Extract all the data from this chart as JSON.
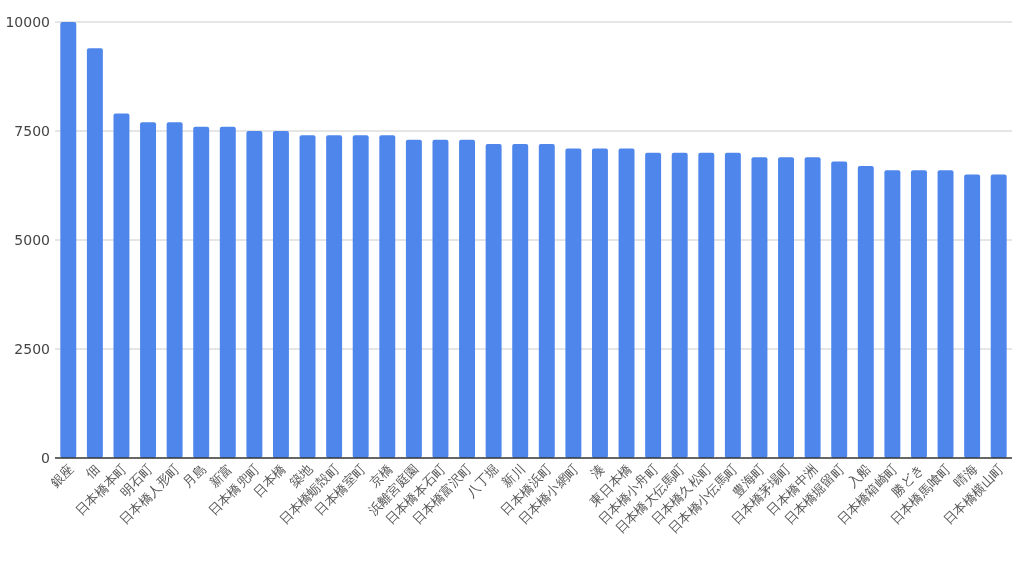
{
  "chart_data": {
    "type": "bar",
    "categories": [
      "銀座",
      "佃",
      "日本橋本町",
      "明石町",
      "日本橋人形町",
      "月島",
      "新富",
      "日本橋兜町",
      "日本橋",
      "築地",
      "日本橋蛎殻町",
      "日本橋室町",
      "京橋",
      "浜離宮庭園",
      "日本橋本石町",
      "日本橋富沢町",
      "八丁堀",
      "新川",
      "日本橋浜町",
      "日本橋小網町",
      "湊",
      "東日本橋",
      "日本橋小舟町",
      "日本橋大伝馬町",
      "日本橋久松町",
      "日本橋小伝馬町",
      "豊海町",
      "日本橋茅場町",
      "日本橋中洲",
      "日本橋堀留町",
      "入船",
      "日本橋箱崎町",
      "勝どき",
      "日本橋馬喰町",
      "晴海",
      "日本橋横山町"
    ],
    "values": [
      10000,
      9400,
      7900,
      7700,
      7700,
      7600,
      7600,
      7500,
      7500,
      7400,
      7400,
      7400,
      7400,
      7300,
      7300,
      7300,
      7200,
      7200,
      7200,
      7100,
      7100,
      7100,
      7000,
      7000,
      7000,
      7000,
      6900,
      6900,
      6900,
      6800,
      6700,
      6600,
      6600,
      6600,
      6500,
      6500
    ],
    "color": "#4f86ec",
    "ylim": [
      0,
      10000
    ],
    "yticks": [
      0,
      2500,
      5000,
      7500,
      10000
    ],
    "grid": "y"
  }
}
